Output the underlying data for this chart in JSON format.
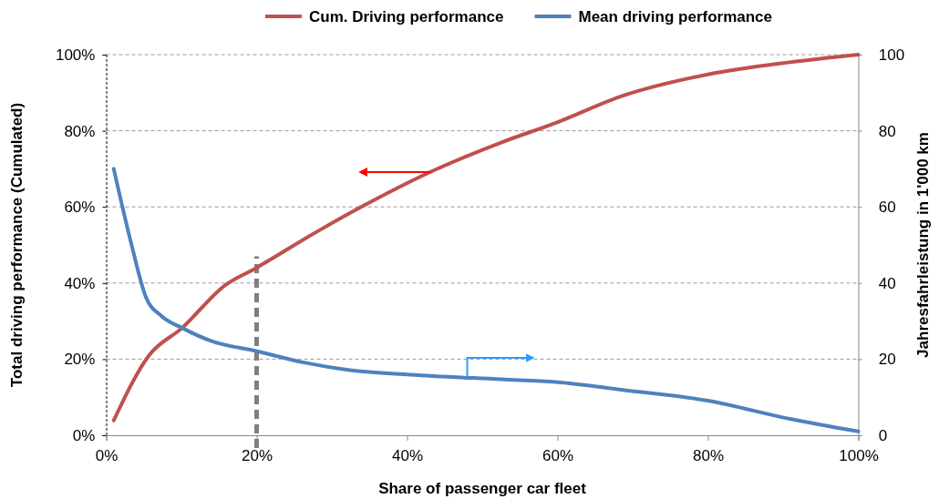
{
  "chart_data": {
    "type": "line",
    "xlabel": "Share of passenger car fleet",
    "ylabel": "Total driving performance (Cumulated)",
    "y2label": "Jahresfahrleistung in 1'000 km",
    "xlim": [
      0,
      100
    ],
    "xticks": [
      {
        "value": 0,
        "label": "0%"
      },
      {
        "value": 20,
        "label": "20%"
      },
      {
        "value": 40,
        "label": "40%"
      },
      {
        "value": 60,
        "label": "60%"
      },
      {
        "value": 80,
        "label": "80%"
      },
      {
        "value": 100,
        "label": "100%"
      }
    ],
    "ylim": [
      0,
      100
    ],
    "yticks": [
      {
        "value": 0,
        "label": "0%"
      },
      {
        "value": 20,
        "label": "20%"
      },
      {
        "value": 40,
        "label": "40%"
      },
      {
        "value": 60,
        "label": "60%"
      },
      {
        "value": 80,
        "label": "80%"
      },
      {
        "value": 100,
        "label": "100%"
      }
    ],
    "y2lim": [
      0,
      100
    ],
    "y2ticks": [
      0,
      20,
      40,
      60,
      80,
      100
    ],
    "grid": "y",
    "legend": "top",
    "marker": "none",
    "line_style": "solid",
    "ref_lines": [
      {
        "axis": "x",
        "value": 20,
        "color": "#7f7f7f",
        "line_style": "dashed"
      }
    ],
    "series": [
      {
        "name": "Cum. Driving performance",
        "color": "#c0504d",
        "x": [
          1,
          5.7,
          10.1,
          15.8,
          19.8,
          28.3,
          34.4,
          42.8,
          52.5,
          59.8,
          68.7,
          80,
          90.9,
          100
        ],
        "values": [
          3.9,
          21,
          28.2,
          39.4,
          43.8,
          53.8,
          60.5,
          68.9,
          76.9,
          82.1,
          89.2,
          94.8,
          98,
          100
        ]
      },
      {
        "name": "Mean driving performance",
        "color": "#4f81bd",
        "axis": "y2",
        "x": [
          1,
          3.3,
          5.3,
          7.3,
          10.1,
          14.2,
          19.8,
          26.3,
          32.4,
          40.4,
          52.5,
          59.8,
          68.7,
          80,
          90.9,
          100
        ],
        "values": [
          70,
          50.6,
          36.2,
          31.4,
          28.2,
          24.6,
          22.2,
          19.1,
          17.1,
          15.9,
          14.7,
          14,
          11.9,
          9.1,
          4.3,
          1
        ]
      }
    ]
  }
}
